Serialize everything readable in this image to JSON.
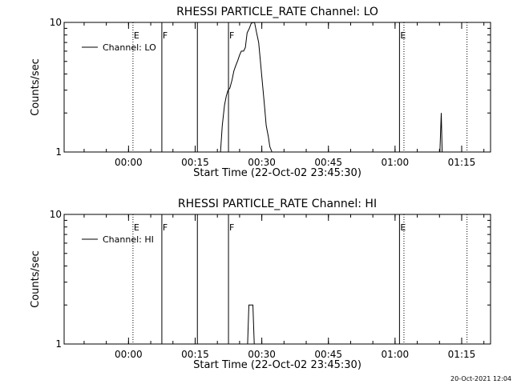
{
  "footer": {
    "timestamp": "20-Oct-2021 12:04"
  },
  "chart_data": [
    {
      "type": "line",
      "title": "RHESSI PARTICLE_RATE Channel: LO",
      "xlabel": "Start Time (22-Oct-02 23:45:30)",
      "ylabel": "Counts/sec",
      "yscale": "log",
      "ylim": [
        1,
        10
      ],
      "xlim_minutes": [
        0,
        96
      ],
      "yticks": [
        "1",
        "10"
      ],
      "xticks": [
        {
          "label": "00:00",
          "t": 14.5
        },
        {
          "label": "00:15",
          "t": 29.5
        },
        {
          "label": "00:30",
          "t": 44.5
        },
        {
          "label": "00:45",
          "t": 59.5
        },
        {
          "label": "01:00",
          "t": 74.5
        },
        {
          "label": "01:15",
          "t": 89.5
        }
      ],
      "legend": {
        "position": "top-left",
        "entries": [
          "Channel: LO"
        ]
      },
      "series": [
        {
          "name": "Channel: LO",
          "x": [
            34.2,
            35.2,
            35.6,
            36.1,
            36.5,
            36.9,
            37.3,
            37.8,
            38.2,
            38.6,
            39.1,
            39.5,
            39.9,
            40.4,
            40.8,
            41.2,
            41.7,
            42.1,
            42.5,
            42.9,
            43.3,
            43.8,
            44.2,
            44.6,
            45.1,
            45.5,
            46.0,
            46.3,
            46.8,
            84.3,
            84.6,
            84.9,
            85.1,
            85.3
          ],
          "values": [
            1,
            1,
            1.6,
            2.3,
            2.7,
            3.0,
            3.1,
            3.6,
            4.2,
            4.6,
            5.1,
            5.6,
            6.0,
            6.0,
            6.4,
            8.3,
            9.0,
            9.8,
            10,
            9.9,
            8.4,
            7.0,
            5.0,
            3.5,
            2.3,
            1.6,
            1.3,
            1.1,
            1,
            1,
            1,
            2.0,
            1,
            1
          ]
        }
      ],
      "vlines": [
        {
          "t": 15.5,
          "style": "dotted",
          "label": "E"
        },
        {
          "t": 22.0,
          "style": "solid",
          "label": "F"
        },
        {
          "t": 30.0,
          "style": "solid",
          "label": ""
        },
        {
          "t": 37.0,
          "style": "solid",
          "label": "F"
        },
        {
          "t": 75.5,
          "style": "solid",
          "label": "E"
        },
        {
          "t": 76.5,
          "style": "dotted",
          "label": ""
        },
        {
          "t": 90.7,
          "style": "dotted",
          "label": ""
        }
      ]
    },
    {
      "type": "line",
      "title": "RHESSI PARTICLE_RATE Channel: HI",
      "xlabel": "Start Time (22-Oct-02 23:45:30)",
      "ylabel": "Counts/sec",
      "yscale": "log",
      "ylim": [
        1,
        10
      ],
      "xlim_minutes": [
        0,
        96
      ],
      "yticks": [
        "1",
        "10"
      ],
      "xticks": [
        {
          "label": "00:00",
          "t": 14.5
        },
        {
          "label": "00:15",
          "t": 29.5
        },
        {
          "label": "00:30",
          "t": 44.5
        },
        {
          "label": "00:45",
          "t": 59.5
        },
        {
          "label": "01:00",
          "t": 74.5
        },
        {
          "label": "01:15",
          "t": 89.5
        }
      ],
      "legend": {
        "position": "top-left",
        "entries": [
          "Channel: HI"
        ]
      },
      "series": [
        {
          "name": "Channel: HI",
          "x": [
            40.8,
            41.3,
            41.6,
            42.5,
            42.8,
            43.3
          ],
          "values": [
            1,
            1,
            2.0,
            2.0,
            1,
            1
          ]
        }
      ],
      "vlines": [
        {
          "t": 15.5,
          "style": "dotted",
          "label": "E"
        },
        {
          "t": 22.0,
          "style": "solid",
          "label": "F"
        },
        {
          "t": 30.0,
          "style": "solid",
          "label": ""
        },
        {
          "t": 37.0,
          "style": "solid",
          "label": "F"
        },
        {
          "t": 75.5,
          "style": "solid",
          "label": "E"
        },
        {
          "t": 76.5,
          "style": "dotted",
          "label": ""
        },
        {
          "t": 90.7,
          "style": "dotted",
          "label": ""
        }
      ]
    }
  ]
}
